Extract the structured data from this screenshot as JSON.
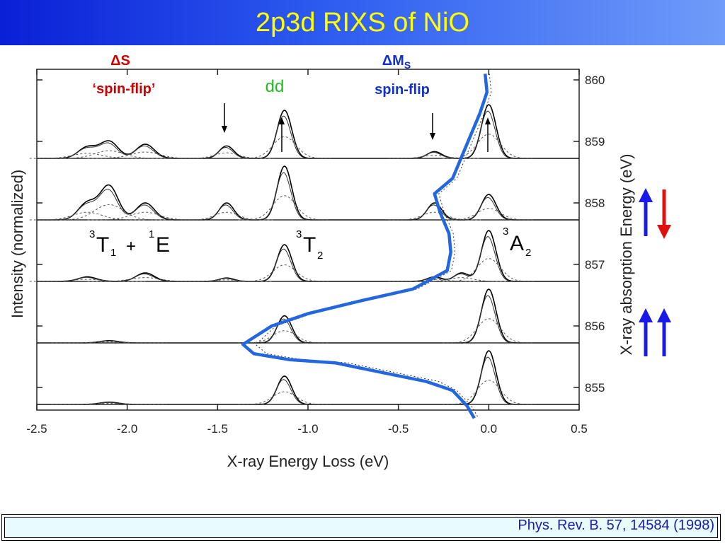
{
  "slide": {
    "title": "2p3d RIXS of NiO",
    "reference": "Phys. Rev. B. 57, 14584 (1998)"
  },
  "annotations": {
    "delta_s": "ΔS",
    "spin_flip_quoted": "‘spin-flip’",
    "dd": "dd",
    "delta_ms": "ΔM",
    "delta_ms_sub": "S",
    "spin_flip": "spin-flip",
    "t1_sup": "3",
    "t1_main": "T",
    "t1_sub": "1",
    "t1_plus": "+",
    "e_sup": "1",
    "e_main": "E",
    "t2_sup": "3",
    "t2_main": "T",
    "t2_sub": "2",
    "a2_sup": "3",
    "a2_main": "A",
    "a2_sub": "2"
  },
  "colors": {
    "title_text": "#ffff00",
    "delta_s": "#cc0000",
    "dd": "#22bb22",
    "delta_ms": "#1030d0",
    "overlay_line": "#2266e0",
    "arrow_blue": "#1a1ae6",
    "arrow_red": "#e01010"
  },
  "chart_data": {
    "type": "line",
    "xlabel": "X-ray Energy Loss (eV)",
    "ylabel_left": "Intensity (normalized)",
    "ylabel_right": "X-ray absorption Energy (eV)",
    "xlim": [
      -2.5,
      0.5
    ],
    "x_ticks": [
      "-2.5",
      "-2.0",
      "-1.5",
      "-1.0",
      "-0.5",
      "0.0",
      "0.5"
    ],
    "y_right_ticks": [
      "855",
      "856",
      "857",
      "858",
      "859",
      "860"
    ],
    "spectra": [
      {
        "excitation": 859,
        "peaks": [
          {
            "x": -2.22,
            "height": 0.2,
            "width": 0.05
          },
          {
            "x": -2.1,
            "height": 0.3,
            "width": 0.05
          },
          {
            "x": -1.9,
            "height": 0.25,
            "width": 0.05
          },
          {
            "x": -1.45,
            "height": 0.22,
            "width": 0.04
          },
          {
            "x": -1.13,
            "height": 0.85,
            "width": 0.04
          },
          {
            "x": -0.3,
            "height": 0.12,
            "width": 0.04
          },
          {
            "x": 0.0,
            "height": 0.95,
            "width": 0.04
          }
        ]
      },
      {
        "excitation": 858,
        "peaks": [
          {
            "x": -2.22,
            "height": 0.3,
            "width": 0.05
          },
          {
            "x": -2.1,
            "height": 0.6,
            "width": 0.05
          },
          {
            "x": -1.9,
            "height": 0.3,
            "width": 0.05
          },
          {
            "x": -1.45,
            "height": 0.3,
            "width": 0.04
          },
          {
            "x": -1.13,
            "height": 0.95,
            "width": 0.04
          },
          {
            "x": -0.3,
            "height": 0.3,
            "width": 0.04
          },
          {
            "x": 0.0,
            "height": 0.45,
            "width": 0.04
          }
        ]
      },
      {
        "excitation": 857,
        "peaks": [
          {
            "x": -2.22,
            "height": 0.08,
            "width": 0.05
          },
          {
            "x": -1.9,
            "height": 0.15,
            "width": 0.05
          },
          {
            "x": -1.45,
            "height": 0.06,
            "width": 0.04
          },
          {
            "x": -1.13,
            "height": 0.65,
            "width": 0.04
          },
          {
            "x": -0.3,
            "height": 0.08,
            "width": 0.04
          },
          {
            "x": -0.15,
            "height": 0.15,
            "width": 0.04
          },
          {
            "x": 0.0,
            "height": 0.9,
            "width": 0.04
          }
        ]
      },
      {
        "excitation": 856,
        "peaks": [
          {
            "x": -2.1,
            "height": 0.04,
            "width": 0.05
          },
          {
            "x": -1.13,
            "height": 0.48,
            "width": 0.04
          },
          {
            "x": 0.0,
            "height": 0.95,
            "width": 0.04
          }
        ]
      },
      {
        "excitation": 855,
        "peaks": [
          {
            "x": -2.1,
            "height": 0.04,
            "width": 0.05
          },
          {
            "x": -1.13,
            "height": 0.5,
            "width": 0.04
          },
          {
            "x": 0.0,
            "height": 0.95,
            "width": 0.04
          }
        ]
      }
    ],
    "absorption_overlay": {
      "description_axes": "x = X-ray Energy Loss axis position of absorption intensity, y = absorption energy (eV)",
      "points": [
        {
          "x": -0.02,
          "y": 860.1
        },
        {
          "x": -0.01,
          "y": 859.8
        },
        {
          "x": -0.05,
          "y": 859.45
        },
        {
          "x": -0.1,
          "y": 859.1
        },
        {
          "x": -0.15,
          "y": 858.75
        },
        {
          "x": -0.2,
          "y": 858.4
        },
        {
          "x": -0.3,
          "y": 858.15
        },
        {
          "x": -0.27,
          "y": 857.85
        },
        {
          "x": -0.22,
          "y": 857.5
        },
        {
          "x": -0.21,
          "y": 857.2
        },
        {
          "x": -0.23,
          "y": 856.9
        },
        {
          "x": -0.42,
          "y": 856.6
        },
        {
          "x": -0.72,
          "y": 856.4
        },
        {
          "x": -1.0,
          "y": 856.2
        },
        {
          "x": -1.2,
          "y": 856.0
        },
        {
          "x": -1.36,
          "y": 855.7
        },
        {
          "x": -1.3,
          "y": 855.55
        },
        {
          "x": -1.1,
          "y": 855.45
        },
        {
          "x": -0.85,
          "y": 855.4
        },
        {
          "x": -0.6,
          "y": 855.25
        },
        {
          "x": -0.35,
          "y": 855.1
        },
        {
          "x": -0.2,
          "y": 854.95
        },
        {
          "x": -0.12,
          "y": 854.7
        },
        {
          "x": -0.08,
          "y": 854.5
        }
      ]
    }
  }
}
